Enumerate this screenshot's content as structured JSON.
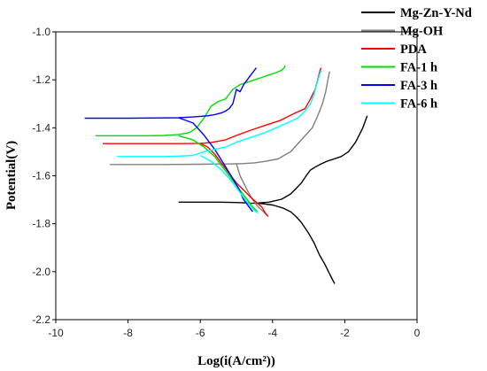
{
  "chart_data": {
    "type": "line",
    "title": "",
    "xlabel": "Log(i(A/cm²))",
    "ylabel": "Potential(V)",
    "xlim": [
      -10,
      0
    ],
    "ylim": [
      -2.2,
      -1.0
    ],
    "x_ticks": [
      "-10",
      "-8",
      "-6",
      "-4",
      "-2",
      "0"
    ],
    "y_ticks": [
      "-1.0",
      "-1.2",
      "-1.4",
      "-1.6",
      "-1.8",
      "-2.0",
      "-2.2"
    ],
    "legend_position": "right",
    "series": [
      {
        "name": "Mg-Zn-Y-Nd",
        "color": "#000000",
        "x": [
          -6.6,
          -5.5,
          -4.9,
          -4.6,
          -4.4,
          -4.3,
          -4.45,
          -4.1,
          -3.75,
          -3.5,
          -3.2,
          -3.05,
          -2.95,
          -2.8,
          -2.65,
          -2.5,
          -2.3,
          -2.1,
          -1.9,
          -1.7,
          -1.5,
          -1.38
        ],
        "y": [
          -1.71,
          -1.71,
          -1.712,
          -1.714,
          -1.715,
          -1.716,
          -1.714,
          -1.71,
          -1.698,
          -1.676,
          -1.63,
          -1.596,
          -1.576,
          -1.562,
          -1.55,
          -1.54,
          -1.53,
          -1.52,
          -1.5,
          -1.46,
          -1.4,
          -1.35
        ],
        "cathodic_x": [
          -4.3,
          -4.0,
          -3.7,
          -3.5,
          -3.35,
          -3.2,
          -3.0,
          -2.85,
          -2.7,
          -2.55,
          -2.45,
          -2.35,
          -2.28
        ],
        "cathodic_y": [
          -1.716,
          -1.722,
          -1.735,
          -1.75,
          -1.77,
          -1.795,
          -1.84,
          -1.88,
          -1.93,
          -1.97,
          -2.0,
          -2.03,
          -2.05
        ]
      },
      {
        "name": "Mg-OH",
        "color": "#808080",
        "x": [
          -8.5,
          -7.0,
          -6.0,
          -5.5,
          -5.2,
          -5.0,
          -4.8,
          -4.5,
          -4.2,
          -3.85,
          -3.5,
          -3.2,
          -2.9,
          -2.75,
          -2.62,
          -2.53,
          -2.48,
          -2.44,
          -2.42
        ],
        "y": [
          -1.553,
          -1.553,
          -1.552,
          -1.551,
          -1.551,
          -1.55,
          -1.549,
          -1.546,
          -1.54,
          -1.53,
          -1.5,
          -1.45,
          -1.4,
          -1.35,
          -1.3,
          -1.25,
          -1.21,
          -1.18,
          -1.165
        ],
        "cathodic_x": [
          -5.0,
          -4.9,
          -4.7,
          -4.55,
          -4.4,
          -4.25,
          -4.15
        ],
        "cathodic_y": [
          -1.55,
          -1.6,
          -1.66,
          -1.7,
          -1.73,
          -1.75,
          -1.765
        ]
      },
      {
        "name": "PDA",
        "color": "#ff0000",
        "x": [
          -8.7,
          -7.0,
          -6.5,
          -6.0,
          -5.7,
          -5.3,
          -5.0,
          -4.6,
          -4.2,
          -3.8,
          -3.4,
          -3.1,
          -2.95,
          -2.82,
          -2.75,
          -2.7,
          -2.67,
          -2.66
        ],
        "y": [
          -1.466,
          -1.466,
          -1.466,
          -1.465,
          -1.461,
          -1.45,
          -1.432,
          -1.41,
          -1.39,
          -1.37,
          -1.34,
          -1.32,
          -1.28,
          -1.24,
          -1.2,
          -1.17,
          -1.155,
          -1.15
        ],
        "cathodic_x": [
          -6.0,
          -5.8,
          -5.6,
          -5.4,
          -5.2,
          -5.0,
          -4.8,
          -4.6,
          -4.45,
          -4.3,
          -4.2,
          -4.12
        ],
        "cathodic_y": [
          -1.465,
          -1.48,
          -1.51,
          -1.55,
          -1.59,
          -1.63,
          -1.66,
          -1.69,
          -1.71,
          -1.73,
          -1.755,
          -1.77
        ]
      },
      {
        "name": "FA-1 h",
        "color": "#00dd00",
        "x": [
          -8.9,
          -7.5,
          -7.0,
          -6.6,
          -6.3,
          -6.1,
          -5.9,
          -5.7,
          -5.5,
          -5.3,
          -5.1,
          -4.9,
          -4.7,
          -4.5,
          -4.3,
          -4.1,
          -3.9,
          -3.75,
          -3.68,
          -3.65
        ],
        "y": [
          -1.433,
          -1.433,
          -1.432,
          -1.428,
          -1.42,
          -1.4,
          -1.36,
          -1.31,
          -1.29,
          -1.28,
          -1.24,
          -1.22,
          -1.21,
          -1.2,
          -1.19,
          -1.18,
          -1.17,
          -1.16,
          -1.15,
          -1.14
        ],
        "cathodic_x": [
          -6.6,
          -6.2,
          -5.9,
          -5.6,
          -5.35,
          -5.1,
          -4.9,
          -4.7,
          -4.55,
          -4.42
        ],
        "cathodic_y": [
          -1.433,
          -1.45,
          -1.48,
          -1.52,
          -1.57,
          -1.62,
          -1.66,
          -1.7,
          -1.73,
          -1.75
        ]
      },
      {
        "name": "FA-3 h",
        "color": "#0000ff",
        "x": [
          -9.2,
          -8.0,
          -7.2,
          -6.6,
          -6.2,
          -5.8,
          -5.6,
          -5.4,
          -5.3,
          -5.2,
          -5.1,
          -5.05,
          -5.0,
          -4.9,
          -4.8,
          -4.7,
          -4.6,
          -4.5,
          -4.45
        ],
        "y": [
          -1.36,
          -1.36,
          -1.359,
          -1.358,
          -1.355,
          -1.35,
          -1.345,
          -1.337,
          -1.33,
          -1.32,
          -1.3,
          -1.27,
          -1.24,
          -1.25,
          -1.22,
          -1.2,
          -1.18,
          -1.16,
          -1.15
        ],
        "cathodic_x": [
          -6.6,
          -6.2,
          -5.9,
          -5.6,
          -5.35,
          -5.15,
          -4.95,
          -4.8,
          -4.65,
          -4.55
        ],
        "cathodic_y": [
          -1.358,
          -1.38,
          -1.43,
          -1.49,
          -1.55,
          -1.6,
          -1.65,
          -1.7,
          -1.73,
          -1.75
        ]
      },
      {
        "name": "FA-6 h",
        "color": "#00ffff",
        "x": [
          -8.3,
          -7.0,
          -6.6,
          -6.2,
          -5.9,
          -5.6,
          -5.3,
          -5.0,
          -4.6,
          -4.2,
          -3.9,
          -3.6,
          -3.3,
          -3.1,
          -2.95,
          -2.85,
          -2.78,
          -2.72,
          -2.68,
          -2.65
        ],
        "y": [
          -1.52,
          -1.52,
          -1.518,
          -1.515,
          -1.5,
          -1.49,
          -1.48,
          -1.46,
          -1.44,
          -1.42,
          -1.4,
          -1.38,
          -1.36,
          -1.33,
          -1.3,
          -1.26,
          -1.22,
          -1.19,
          -1.17,
          -1.16
        ],
        "cathodic_x": [
          -6.0,
          -5.7,
          -5.45,
          -5.2,
          -5.0,
          -4.8,
          -4.65,
          -4.5,
          -4.4
        ],
        "cathodic_y": [
          -1.515,
          -1.54,
          -1.57,
          -1.61,
          -1.65,
          -1.69,
          -1.72,
          -1.745,
          -1.755
        ]
      }
    ]
  }
}
